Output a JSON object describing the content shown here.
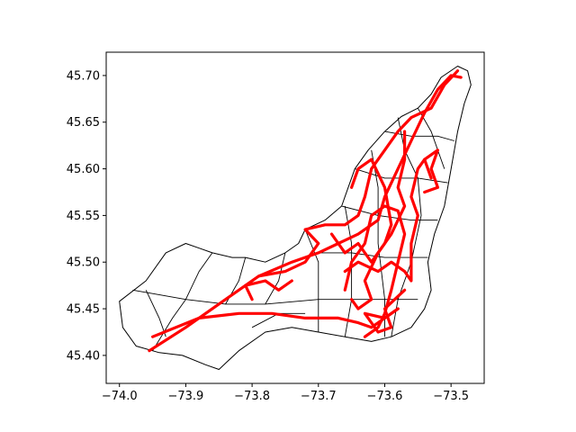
{
  "chart_data": {
    "type": "map",
    "title": "",
    "xlabel": "",
    "ylabel": "",
    "xlim": [
      -74.02,
      -73.45
    ],
    "ylim": [
      45.37,
      45.725
    ],
    "xticks": [
      -74.0,
      -73.9,
      -73.8,
      -73.7,
      -73.6,
      -73.5
    ],
    "yticks": [
      45.4,
      45.45,
      45.5,
      45.55,
      45.6,
      45.65,
      45.7
    ],
    "xtick_labels": [
      "−74.0",
      "−73.9",
      "−73.8",
      "−73.7",
      "−73.6",
      "−73.5"
    ],
    "ytick_labels": [
      "45.40",
      "45.45",
      "45.50",
      "45.55",
      "45.60",
      "45.65",
      "45.70"
    ],
    "grid": false,
    "layers": [
      {
        "name": "district boundaries",
        "color": "#000000",
        "geometry": "polygons"
      },
      {
        "name": "routes",
        "color": "#ff0000",
        "geometry": "lines"
      }
    ],
    "island_outline": [
      [
        -73.475,
        45.705
      ],
      [
        -73.49,
        45.71
      ],
      [
        -73.515,
        45.698
      ],
      [
        -73.53,
        45.68
      ],
      [
        -73.55,
        45.665
      ],
      [
        -73.575,
        45.656
      ],
      [
        -73.6,
        45.64
      ],
      [
        -73.625,
        45.62
      ],
      [
        -73.645,
        45.6
      ],
      [
        -73.655,
        45.58
      ],
      [
        -73.665,
        45.56
      ],
      [
        -73.69,
        45.545
      ],
      [
        -73.72,
        45.535
      ],
      [
        -73.73,
        45.52
      ],
      [
        -73.75,
        45.51
      ],
      [
        -73.78,
        45.5
      ],
      [
        -73.81,
        45.505
      ],
      [
        -73.83,
        45.505
      ],
      [
        -73.86,
        45.51
      ],
      [
        -73.88,
        45.515
      ],
      [
        -73.9,
        45.52
      ],
      [
        -73.93,
        45.51
      ],
      [
        -73.96,
        45.48
      ],
      [
        -74.0,
        45.458
      ],
      [
        -73.995,
        45.43
      ],
      [
        -73.975,
        45.41
      ],
      [
        -73.94,
        45.403
      ],
      [
        -73.905,
        45.4
      ],
      [
        -73.87,
        45.39
      ],
      [
        -73.85,
        45.385
      ],
      [
        -73.82,
        45.405
      ],
      [
        -73.78,
        45.425
      ],
      [
        -73.74,
        45.43
      ],
      [
        -73.7,
        45.425
      ],
      [
        -73.66,
        45.42
      ],
      [
        -73.62,
        45.415
      ],
      [
        -73.59,
        45.42
      ],
      [
        -73.56,
        45.43
      ],
      [
        -73.54,
        45.45
      ],
      [
        -73.53,
        45.47
      ],
      [
        -73.535,
        45.5
      ],
      [
        -73.525,
        45.53
      ],
      [
        -73.51,
        45.56
      ],
      [
        -73.5,
        45.6
      ],
      [
        -73.49,
        45.64
      ],
      [
        -73.48,
        45.67
      ],
      [
        -73.47,
        45.69
      ],
      [
        -73.475,
        45.705
      ]
    ],
    "district_lines": [
      [
        [
          -73.98,
          45.47
        ],
        [
          -73.9,
          45.46
        ],
        [
          -73.84,
          45.455
        ],
        [
          -73.78,
          45.455
        ],
        [
          -73.7,
          45.46
        ],
        [
          -73.62,
          45.46
        ],
        [
          -73.55,
          45.46
        ]
      ],
      [
        [
          -73.95,
          45.405
        ],
        [
          -73.92,
          45.44
        ],
        [
          -73.9,
          45.46
        ]
      ],
      [
        [
          -73.9,
          45.46
        ],
        [
          -73.88,
          45.49
        ],
        [
          -73.86,
          45.51
        ]
      ],
      [
        [
          -73.84,
          45.455
        ],
        [
          -73.82,
          45.48
        ],
        [
          -73.81,
          45.505
        ]
      ],
      [
        [
          -73.78,
          45.455
        ],
        [
          -73.76,
          45.48
        ],
        [
          -73.75,
          45.51
        ]
      ],
      [
        [
          -73.72,
          45.535
        ],
        [
          -73.7,
          45.5
        ],
        [
          -73.7,
          45.46
        ],
        [
          -73.7,
          45.425
        ]
      ],
      [
        [
          -73.66,
          45.56
        ],
        [
          -73.65,
          45.52
        ],
        [
          -73.65,
          45.46
        ],
        [
          -73.66,
          45.42
        ]
      ],
      [
        [
          -73.62,
          45.62
        ],
        [
          -73.61,
          45.58
        ],
        [
          -73.61,
          45.52
        ],
        [
          -73.6,
          45.46
        ],
        [
          -73.6,
          45.42
        ]
      ],
      [
        [
          -73.645,
          45.6
        ],
        [
          -73.6,
          45.59
        ],
        [
          -73.55,
          45.59
        ],
        [
          -73.505,
          45.585
        ]
      ],
      [
        [
          -73.665,
          45.56
        ],
        [
          -73.61,
          45.55
        ],
        [
          -73.56,
          45.545
        ],
        [
          -73.52,
          45.545
        ]
      ],
      [
        [
          -73.7,
          45.51
        ],
        [
          -73.65,
          45.51
        ],
        [
          -73.6,
          45.505
        ],
        [
          -73.535,
          45.505
        ]
      ],
      [
        [
          -73.58,
          45.655
        ],
        [
          -73.57,
          45.62
        ],
        [
          -73.55,
          45.59
        ],
        [
          -73.545,
          45.55
        ],
        [
          -73.56,
          45.5
        ],
        [
          -73.58,
          45.46
        ],
        [
          -73.59,
          45.42
        ]
      ],
      [
        [
          -73.6,
          45.64
        ],
        [
          -73.56,
          45.635
        ],
        [
          -73.52,
          45.635
        ],
        [
          -73.495,
          45.63
        ]
      ],
      [
        [
          -73.55,
          45.665
        ],
        [
          -73.53,
          45.64
        ],
        [
          -73.51,
          45.6
        ]
      ],
      [
        [
          -73.8,
          45.43
        ],
        [
          -73.76,
          45.445
        ],
        [
          -73.72,
          45.445
        ]
      ],
      [
        [
          -73.96,
          45.47
        ],
        [
          -73.94,
          45.44
        ],
        [
          -73.93,
          45.42
        ]
      ]
    ],
    "routes": [
      [
        [
          -73.955,
          45.405
        ],
        [
          -73.9,
          45.43
        ],
        [
          -73.84,
          45.46
        ],
        [
          -73.79,
          45.485
        ],
        [
          -73.74,
          45.5
        ],
        [
          -73.7,
          45.51
        ],
        [
          -73.67,
          45.52
        ],
        [
          -73.64,
          45.53
        ],
        [
          -73.61,
          45.545
        ],
        [
          -73.6,
          45.57
        ],
        [
          -73.58,
          45.6
        ],
        [
          -73.56,
          45.63
        ],
        [
          -73.54,
          45.66
        ],
        [
          -73.52,
          45.685
        ],
        [
          -73.5,
          45.7
        ],
        [
          -73.485,
          45.698
        ]
      ],
      [
        [
          -73.95,
          45.42
        ],
        [
          -73.88,
          45.44
        ],
        [
          -73.82,
          45.445
        ],
        [
          -73.77,
          45.445
        ],
        [
          -73.72,
          45.44
        ],
        [
          -73.67,
          45.44
        ],
        [
          -73.64,
          45.435
        ],
        [
          -73.62,
          45.43
        ],
        [
          -73.6,
          45.44
        ],
        [
          -73.58,
          45.45
        ]
      ],
      [
        [
          -73.79,
          45.485
        ],
        [
          -73.75,
          45.49
        ],
        [
          -73.72,
          45.5
        ],
        [
          -73.7,
          45.52
        ],
        [
          -73.72,
          45.535
        ],
        [
          -73.69,
          45.54
        ],
        [
          -73.66,
          45.54
        ],
        [
          -73.64,
          45.55
        ],
        [
          -73.63,
          45.57
        ],
        [
          -73.62,
          45.6
        ],
        [
          -73.6,
          45.62
        ],
        [
          -73.58,
          45.64
        ],
        [
          -73.56,
          45.655
        ],
        [
          -73.53,
          45.665
        ],
        [
          -73.51,
          45.69
        ],
        [
          -73.49,
          45.705
        ]
      ],
      [
        [
          -73.66,
          45.47
        ],
        [
          -73.65,
          45.5
        ],
        [
          -73.63,
          45.52
        ],
        [
          -73.62,
          45.55
        ],
        [
          -73.6,
          45.56
        ],
        [
          -73.58,
          45.555
        ],
        [
          -73.57,
          45.53
        ],
        [
          -73.58,
          45.5
        ],
        [
          -73.59,
          45.47
        ],
        [
          -73.6,
          45.445
        ],
        [
          -73.61,
          45.43
        ],
        [
          -73.63,
          45.42
        ]
      ],
      [
        [
          -73.66,
          45.49
        ],
        [
          -73.64,
          45.5
        ],
        [
          -73.61,
          45.49
        ],
        [
          -73.59,
          45.5
        ],
        [
          -73.57,
          45.49
        ],
        [
          -73.56,
          45.48
        ],
        [
          -73.56,
          45.52
        ],
        [
          -73.55,
          45.55
        ],
        [
          -73.56,
          45.57
        ],
        [
          -73.55,
          45.6
        ],
        [
          -73.54,
          45.61
        ]
      ],
      [
        [
          -73.68,
          45.53
        ],
        [
          -73.66,
          45.51
        ],
        [
          -73.64,
          45.52
        ],
        [
          -73.62,
          45.5
        ],
        [
          -73.6,
          45.52
        ],
        [
          -73.59,
          45.54
        ],
        [
          -73.6,
          45.58
        ],
        [
          -73.62,
          45.61
        ],
        [
          -73.64,
          45.6
        ],
        [
          -73.65,
          45.58
        ]
      ],
      [
        [
          -73.57,
          45.64
        ],
        [
          -73.57,
          45.61
        ],
        [
          -73.58,
          45.58
        ],
        [
          -73.57,
          45.56
        ],
        [
          -73.59,
          45.53
        ],
        [
          -73.61,
          45.51
        ],
        [
          -73.63,
          45.48
        ],
        [
          -73.62,
          45.46
        ],
        [
          -73.64,
          45.45
        ],
        [
          -73.65,
          45.46
        ]
      ],
      [
        [
          -73.53,
          45.59
        ],
        [
          -73.54,
          45.61
        ],
        [
          -73.52,
          45.62
        ],
        [
          -73.53,
          45.6
        ],
        [
          -73.52,
          45.58
        ],
        [
          -73.54,
          45.575
        ]
      ],
      [
        [
          -73.8,
          45.46
        ],
        [
          -73.81,
          45.475
        ],
        [
          -73.78,
          45.48
        ],
        [
          -73.76,
          45.47
        ],
        [
          -73.74,
          45.48
        ]
      ],
      [
        [
          -73.58,
          45.45
        ],
        [
          -73.6,
          45.44
        ],
        [
          -73.63,
          45.445
        ],
        [
          -73.61,
          45.425
        ],
        [
          -73.59,
          45.43
        ],
        [
          -73.6,
          45.45
        ],
        [
          -73.57,
          45.47
        ]
      ]
    ]
  }
}
